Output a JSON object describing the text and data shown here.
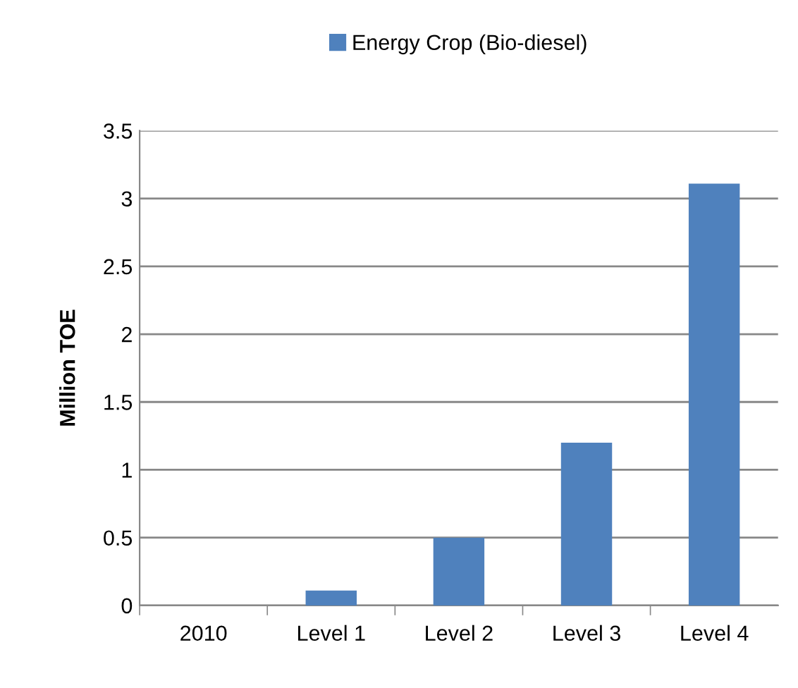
{
  "chart_data": {
    "type": "bar",
    "ylabel": "Million TOE",
    "categories": [
      "2010",
      "Level 1",
      "Level 2",
      "Level 3",
      "Level 4"
    ],
    "series": [
      {
        "name": "Energy Crop (Bio-diesel)",
        "color": "#4f81bd",
        "values": [
          0,
          0.11,
          0.5,
          1.2,
          3.11
        ]
      }
    ],
    "ylim": [
      0,
      3.5
    ],
    "yticks": [
      0,
      0.5,
      1,
      1.5,
      2,
      2.5,
      3,
      3.5
    ],
    "grid": "y",
    "legend": "top"
  }
}
